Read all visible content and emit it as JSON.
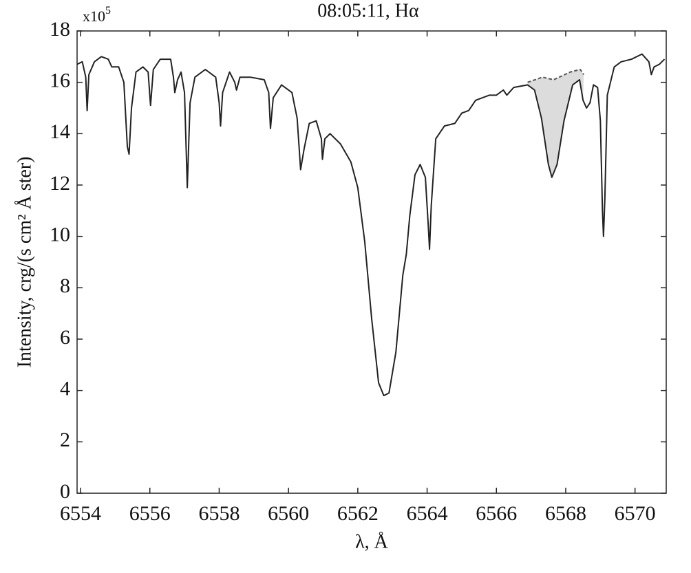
{
  "chart_data": {
    "type": "line",
    "title": "08:05:11, Hα",
    "xlabel": "λ, Å",
    "ylabel": "Intensity, crg/(s cm² Å ster)",
    "y_scale": {
      "base": "x10",
      "exponent": "5"
    },
    "xlim": [
      6553.9,
      6570.9
    ],
    "ylim": [
      0,
      18
    ],
    "xticks": [
      6554,
      6556,
      6558,
      6560,
      6562,
      6564,
      6566,
      6568,
      6570
    ],
    "yticks": [
      0,
      2,
      4,
      6,
      8,
      10,
      12,
      14,
      16,
      18
    ],
    "series": [
      {
        "color": "#222222",
        "x": [
          6553.9,
          6554.05,
          6554.15,
          6554.19,
          6554.24,
          6554.4,
          6554.6,
          6554.8,
          6554.9,
          6555.1,
          6555.25,
          6555.35,
          6555.4,
          6555.47,
          6555.6,
          6555.8,
          6555.95,
          6556.02,
          6556.1,
          6556.3,
          6556.6,
          6556.68,
          6556.72,
          6556.8,
          6556.9,
          6557.0,
          6557.08,
          6557.16,
          6557.3,
          6557.6,
          6557.9,
          6558.0,
          6558.04,
          6558.1,
          6558.3,
          6558.45,
          6558.5,
          6558.6,
          6558.9,
          6559.3,
          6559.43,
          6559.48,
          6559.56,
          6559.8,
          6560.1,
          6560.25,
          6560.35,
          6560.45,
          6560.6,
          6560.8,
          6560.95,
          6560.98,
          6561.05,
          6561.2,
          6561.5,
          6561.8,
          6562.0,
          6562.2,
          6562.4,
          6562.6,
          6562.75,
          6562.9,
          6563.1,
          6563.3,
          6563.4,
          6563.5,
          6563.65,
          6563.8,
          6563.95,
          6564.03,
          6564.07,
          6564.12,
          6564.25,
          6564.5,
          6564.8,
          6565.0,
          6565.2,
          6565.4,
          6565.8,
          6566.0,
          6566.2,
          6566.3,
          6566.5,
          6566.9,
          6567.1,
          6567.3,
          6567.5,
          6567.6,
          6567.75,
          6567.95,
          6568.2,
          6568.4,
          6568.5,
          6568.6,
          6568.7,
          6568.8,
          6568.92,
          6569.0,
          6569.06,
          6569.09,
          6569.13,
          6569.2,
          6569.4,
          6569.6,
          6569.9,
          6570.2,
          6570.4,
          6570.47,
          6570.55,
          6570.7,
          6570.85
        ],
        "values": [
          16.7,
          16.8,
          16.2,
          14.9,
          16.3,
          16.8,
          17.0,
          16.9,
          16.6,
          16.6,
          16.0,
          13.5,
          13.2,
          15.0,
          16.4,
          16.6,
          16.4,
          15.1,
          16.5,
          16.9,
          16.9,
          16.2,
          15.6,
          16.1,
          16.4,
          15.6,
          11.9,
          15.2,
          16.2,
          16.5,
          16.2,
          15.2,
          14.3,
          15.6,
          16.4,
          16.0,
          15.7,
          16.2,
          16.2,
          16.1,
          15.6,
          14.2,
          15.4,
          15.9,
          15.6,
          14.6,
          12.6,
          13.4,
          14.4,
          14.5,
          13.8,
          13.0,
          13.8,
          14.0,
          13.6,
          12.9,
          11.9,
          9.8,
          6.8,
          4.3,
          3.8,
          3.9,
          5.5,
          8.5,
          9.3,
          10.8,
          12.4,
          12.8,
          12.3,
          10.5,
          9.5,
          11.2,
          13.8,
          14.3,
          14.4,
          14.8,
          14.9,
          15.3,
          15.5,
          15.5,
          15.7,
          15.5,
          15.8,
          15.9,
          15.7,
          14.6,
          12.8,
          12.3,
          12.8,
          14.5,
          15.9,
          16.1,
          15.3,
          15.0,
          15.2,
          15.9,
          15.8,
          14.5,
          11.0,
          10.0,
          11.5,
          15.5,
          16.6,
          16.8,
          16.9,
          17.1,
          16.8,
          16.3,
          16.6,
          16.7,
          16.9
        ]
      },
      {
        "color": "#555555",
        "style": "dashed",
        "fill": "#dcdcdc",
        "x": [
          6566.9,
          6567.33,
          6567.65,
          6568.13,
          6568.42,
          6568.52
        ],
        "values": [
          16.0,
          16.2,
          16.1,
          16.4,
          16.5,
          16.3
        ]
      }
    ]
  }
}
